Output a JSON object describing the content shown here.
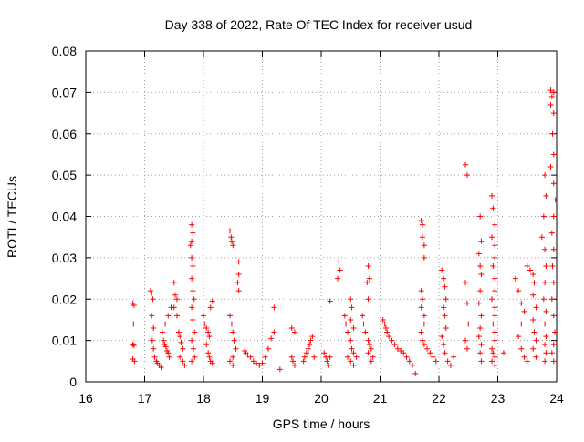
{
  "chart_data": {
    "type": "scatter",
    "title": "Day 338 of 2022, Rate Of TEC Index for receiver usud",
    "xlabel": "GPS time / hours",
    "ylabel": "ROTI / TECUs",
    "xlim": [
      16,
      24
    ],
    "ylim": [
      0,
      0.08
    ],
    "xticks": [
      "16",
      "17",
      "18",
      "19",
      "20",
      "21",
      "22",
      "23",
      "24"
    ],
    "yticks": [
      "0",
      "0.01",
      "0.02",
      "0.03",
      "0.04",
      "0.05",
      "0.06",
      "0.07",
      "0.08"
    ],
    "grid": true,
    "marker": "+",
    "series_color": "#ff0000",
    "series": [
      {
        "points": [
          [
            16.8,
            0.019
          ],
          [
            16.82,
            0.0185
          ],
          [
            16.81,
            0.014
          ],
          [
            16.8,
            0.009
          ],
          [
            16.82,
            0.0088
          ],
          [
            16.8,
            0.0055
          ],
          [
            16.83,
            0.005
          ],
          [
            17.1,
            0.022
          ],
          [
            17.12,
            0.0215
          ],
          [
            17.14,
            0.02
          ],
          [
            17.12,
            0.016
          ],
          [
            17.15,
            0.013
          ],
          [
            17.13,
            0.01
          ],
          [
            17.15,
            0.008
          ],
          [
            17.17,
            0.006
          ],
          [
            17.2,
            0.005
          ],
          [
            17.22,
            0.0045
          ],
          [
            17.25,
            0.004
          ],
          [
            17.28,
            0.0035
          ],
          [
            17.3,
            0.012
          ],
          [
            17.32,
            0.01
          ],
          [
            17.34,
            0.009
          ],
          [
            17.36,
            0.0085
          ],
          [
            17.38,
            0.0075
          ],
          [
            17.4,
            0.007
          ],
          [
            17.42,
            0.006
          ],
          [
            17.35,
            0.014
          ],
          [
            17.4,
            0.016
          ],
          [
            17.45,
            0.018
          ],
          [
            17.5,
            0.024
          ],
          [
            17.52,
            0.021
          ],
          [
            17.55,
            0.02
          ],
          [
            17.5,
            0.018
          ],
          [
            17.55,
            0.016
          ],
          [
            17.58,
            0.012
          ],
          [
            17.6,
            0.011
          ],
          [
            17.62,
            0.0095
          ],
          [
            17.65,
            0.008
          ],
          [
            17.6,
            0.006
          ],
          [
            17.65,
            0.005
          ],
          [
            17.68,
            0.004
          ],
          [
            17.8,
            0.038
          ],
          [
            17.82,
            0.036
          ],
          [
            17.8,
            0.034
          ],
          [
            17.78,
            0.033
          ],
          [
            17.8,
            0.03
          ],
          [
            17.82,
            0.028
          ],
          [
            17.8,
            0.025
          ],
          [
            17.82,
            0.022
          ],
          [
            17.84,
            0.02
          ],
          [
            17.8,
            0.018
          ],
          [
            17.82,
            0.015
          ],
          [
            17.85,
            0.012
          ],
          [
            17.8,
            0.01
          ],
          [
            17.83,
            0.008
          ],
          [
            17.85,
            0.006
          ],
          [
            17.8,
            0.005
          ],
          [
            18.0,
            0.016
          ],
          [
            18.02,
            0.014
          ],
          [
            18.05,
            0.013
          ],
          [
            18.08,
            0.012
          ],
          [
            18.1,
            0.011
          ],
          [
            18.05,
            0.009
          ],
          [
            18.08,
            0.007
          ],
          [
            18.1,
            0.006
          ],
          [
            18.12,
            0.005
          ],
          [
            18.15,
            0.0045
          ],
          [
            18.12,
            0.018
          ],
          [
            18.15,
            0.0195
          ],
          [
            18.45,
            0.0365
          ],
          [
            18.47,
            0.035
          ],
          [
            18.48,
            0.034
          ],
          [
            18.5,
            0.033
          ],
          [
            18.6,
            0.029
          ],
          [
            18.6,
            0.026
          ],
          [
            18.58,
            0.024
          ],
          [
            18.6,
            0.022
          ],
          [
            18.45,
            0.016
          ],
          [
            18.48,
            0.014
          ],
          [
            18.5,
            0.012
          ],
          [
            18.52,
            0.01
          ],
          [
            18.55,
            0.008
          ],
          [
            18.5,
            0.006
          ],
          [
            18.45,
            0.005
          ],
          [
            18.5,
            0.004
          ],
          [
            18.7,
            0.0075
          ],
          [
            18.72,
            0.007
          ],
          [
            18.75,
            0.0065
          ],
          [
            18.8,
            0.006
          ],
          [
            18.85,
            0.005
          ],
          [
            18.9,
            0.0045
          ],
          [
            18.95,
            0.004
          ],
          [
            19.0,
            0.0045
          ],
          [
            19.05,
            0.006
          ],
          [
            19.1,
            0.008
          ],
          [
            19.15,
            0.0105
          ],
          [
            19.2,
            0.012
          ],
          [
            19.2,
            0.018
          ],
          [
            19.3,
            0.003
          ],
          [
            19.5,
            0.013
          ],
          [
            19.55,
            0.012
          ],
          [
            19.5,
            0.006
          ],
          [
            19.52,
            0.005
          ],
          [
            19.55,
            0.004
          ],
          [
            19.7,
            0.005
          ],
          [
            19.72,
            0.006
          ],
          [
            19.75,
            0.007
          ],
          [
            19.78,
            0.008
          ],
          [
            19.8,
            0.009
          ],
          [
            19.82,
            0.01
          ],
          [
            19.85,
            0.011
          ],
          [
            19.88,
            0.006
          ],
          [
            20.05,
            0.007
          ],
          [
            20.08,
            0.006
          ],
          [
            20.1,
            0.005
          ],
          [
            20.12,
            0.004
          ],
          [
            20.15,
            0.006
          ],
          [
            20.15,
            0.0195
          ],
          [
            20.3,
            0.029
          ],
          [
            20.32,
            0.027
          ],
          [
            20.28,
            0.025
          ],
          [
            20.4,
            0.016
          ],
          [
            20.42,
            0.014
          ],
          [
            20.45,
            0.012
          ],
          [
            20.5,
            0.02
          ],
          [
            20.52,
            0.018
          ],
          [
            20.5,
            0.015
          ],
          [
            20.55,
            0.013
          ],
          [
            20.5,
            0.01
          ],
          [
            20.52,
            0.008
          ],
          [
            20.55,
            0.007
          ],
          [
            20.45,
            0.006
          ],
          [
            20.5,
            0.005
          ],
          [
            20.55,
            0.004
          ],
          [
            20.6,
            0.006
          ],
          [
            20.8,
            0.028
          ],
          [
            20.82,
            0.025
          ],
          [
            20.78,
            0.024
          ],
          [
            20.8,
            0.02
          ],
          [
            20.7,
            0.016
          ],
          [
            20.72,
            0.014
          ],
          [
            20.75,
            0.012
          ],
          [
            20.8,
            0.01
          ],
          [
            20.82,
            0.009
          ],
          [
            20.85,
            0.008
          ],
          [
            20.8,
            0.007
          ],
          [
            20.88,
            0.006
          ],
          [
            20.85,
            0.005
          ],
          [
            21.05,
            0.015
          ],
          [
            21.08,
            0.014
          ],
          [
            21.1,
            0.013
          ],
          [
            21.12,
            0.012
          ],
          [
            21.15,
            0.011
          ],
          [
            21.2,
            0.01
          ],
          [
            21.25,
            0.009
          ],
          [
            21.3,
            0.008
          ],
          [
            21.35,
            0.0075
          ],
          [
            21.4,
            0.007
          ],
          [
            21.45,
            0.006
          ],
          [
            21.5,
            0.005
          ],
          [
            21.55,
            0.004
          ],
          [
            21.6,
            0.002
          ],
          [
            21.7,
            0.039
          ],
          [
            21.72,
            0.038
          ],
          [
            21.72,
            0.035
          ],
          [
            21.75,
            0.033
          ],
          [
            21.75,
            0.03
          ],
          [
            21.7,
            0.022
          ],
          [
            21.72,
            0.02
          ],
          [
            21.7,
            0.018
          ],
          [
            21.75,
            0.016
          ],
          [
            21.75,
            0.014
          ],
          [
            21.7,
            0.012
          ],
          [
            21.72,
            0.01
          ],
          [
            21.75,
            0.009
          ],
          [
            21.8,
            0.008
          ],
          [
            21.85,
            0.007
          ],
          [
            21.9,
            0.006
          ],
          [
            21.95,
            0.005
          ],
          [
            22.05,
            0.027
          ],
          [
            22.08,
            0.025
          ],
          [
            22.1,
            0.023
          ],
          [
            22.12,
            0.02
          ],
          [
            22.08,
            0.018
          ],
          [
            22.1,
            0.016
          ],
          [
            22.12,
            0.013
          ],
          [
            22.05,
            0.011
          ],
          [
            22.08,
            0.009
          ],
          [
            22.1,
            0.007
          ],
          [
            22.15,
            0.005
          ],
          [
            22.2,
            0.004
          ],
          [
            22.25,
            0.006
          ],
          [
            22.45,
            0.0525
          ],
          [
            22.48,
            0.05
          ],
          [
            22.45,
            0.024
          ],
          [
            22.48,
            0.019
          ],
          [
            22.5,
            0.014
          ],
          [
            22.45,
            0.01
          ],
          [
            22.48,
            0.008
          ],
          [
            22.7,
            0.04
          ],
          [
            22.72,
            0.034
          ],
          [
            22.68,
            0.031
          ],
          [
            22.7,
            0.028
          ],
          [
            22.72,
            0.026
          ],
          [
            22.7,
            0.022
          ],
          [
            22.68,
            0.019
          ],
          [
            22.72,
            0.016
          ],
          [
            22.7,
            0.013
          ],
          [
            22.68,
            0.011
          ],
          [
            22.72,
            0.009
          ],
          [
            22.7,
            0.007
          ],
          [
            22.72,
            0.005
          ],
          [
            22.9,
            0.045
          ],
          [
            22.92,
            0.042
          ],
          [
            22.95,
            0.038
          ],
          [
            22.9,
            0.035
          ],
          [
            22.95,
            0.033
          ],
          [
            22.95,
            0.03
          ],
          [
            22.92,
            0.028
          ],
          [
            22.95,
            0.025
          ],
          [
            22.95,
            0.022
          ],
          [
            22.9,
            0.02
          ],
          [
            22.95,
            0.018
          ],
          [
            22.95,
            0.016
          ],
          [
            22.92,
            0.014
          ],
          [
            22.95,
            0.012
          ],
          [
            22.95,
            0.01
          ],
          [
            22.9,
            0.008
          ],
          [
            22.92,
            0.007
          ],
          [
            22.95,
            0.006
          ],
          [
            22.9,
            0.005
          ],
          [
            22.95,
            0.004
          ],
          [
            23.1,
            0.007
          ],
          [
            23.3,
            0.025
          ],
          [
            23.35,
            0.022
          ],
          [
            23.4,
            0.019
          ],
          [
            23.45,
            0.017
          ],
          [
            23.4,
            0.014
          ],
          [
            23.35,
            0.011
          ],
          [
            23.4,
            0.008
          ],
          [
            23.45,
            0.006
          ],
          [
            23.5,
            0.005
          ],
          [
            23.5,
            0.028
          ],
          [
            23.55,
            0.027
          ],
          [
            23.6,
            0.026
          ],
          [
            23.62,
            0.024
          ],
          [
            23.6,
            0.021
          ],
          [
            23.65,
            0.018
          ],
          [
            23.6,
            0.015
          ],
          [
            23.62,
            0.012
          ],
          [
            23.65,
            0.01
          ],
          [
            23.6,
            0.008
          ],
          [
            23.65,
            0.006
          ],
          [
            23.75,
            0.035
          ],
          [
            23.8,
            0.05
          ],
          [
            23.82,
            0.045
          ],
          [
            23.78,
            0.04
          ],
          [
            23.8,
            0.032
          ],
          [
            23.82,
            0.028
          ],
          [
            23.8,
            0.024
          ],
          [
            23.78,
            0.02
          ],
          [
            23.82,
            0.017
          ],
          [
            23.8,
            0.014
          ],
          [
            23.82,
            0.011
          ],
          [
            23.8,
            0.009
          ],
          [
            23.82,
            0.007
          ],
          [
            23.8,
            0.005
          ],
          [
            23.9,
            0.0705
          ],
          [
            23.95,
            0.07
          ],
          [
            23.92,
            0.069
          ],
          [
            23.9,
            0.067
          ],
          [
            23.95,
            0.065
          ],
          [
            23.93,
            0.06
          ],
          [
            23.95,
            0.055
          ],
          [
            23.9,
            0.052
          ],
          [
            23.95,
            0.048
          ],
          [
            23.98,
            0.044
          ],
          [
            23.95,
            0.04
          ],
          [
            23.92,
            0.036
          ],
          [
            23.95,
            0.032
          ],
          [
            23.93,
            0.028
          ],
          [
            23.95,
            0.024
          ],
          [
            23.92,
            0.02
          ],
          [
            23.95,
            0.016
          ],
          [
            23.97,
            0.012
          ],
          [
            23.95,
            0.009
          ],
          [
            23.92,
            0.007
          ],
          [
            23.95,
            0.005
          ]
        ]
      }
    ]
  }
}
